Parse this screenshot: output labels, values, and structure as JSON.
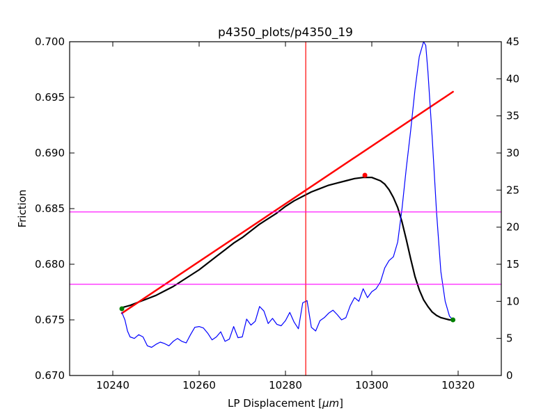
{
  "chart_data": {
    "type": "line",
    "title": "p4350_plots/p4350_19",
    "xlabel": "LP Displacement [",
    "xlabel_unit": "μm",
    "xlabel_close": "]",
    "ylabel": "Friction",
    "xlim": [
      10230,
      10330
    ],
    "ylim": [
      0.67,
      0.7
    ],
    "y2lim": [
      0,
      45
    ],
    "grid": false,
    "x_ticks": [
      {
        "value": 10240,
        "label": "10240"
      },
      {
        "value": 10260,
        "label": "10260"
      },
      {
        "value": 10280,
        "label": "10280"
      },
      {
        "value": 10300,
        "label": "10300"
      },
      {
        "value": 10320,
        "label": "10320"
      }
    ],
    "y_ticks": [
      {
        "value": 0.67,
        "label": "0.670"
      },
      {
        "value": 0.675,
        "label": "0.675"
      },
      {
        "value": 0.68,
        "label": "0.680"
      },
      {
        "value": 0.685,
        "label": "0.685"
      },
      {
        "value": 0.69,
        "label": "0.690"
      },
      {
        "value": 0.695,
        "label": "0.695"
      },
      {
        "value": 0.7,
        "label": "0.700"
      }
    ],
    "y2_ticks": [
      {
        "value": 0,
        "label": "0"
      },
      {
        "value": 5,
        "label": "5"
      },
      {
        "value": 10,
        "label": "10"
      },
      {
        "value": 15,
        "label": "15"
      },
      {
        "value": 20,
        "label": "20"
      },
      {
        "value": 25,
        "label": "25"
      },
      {
        "value": 30,
        "label": "30"
      },
      {
        "value": 35,
        "label": "35"
      },
      {
        "value": 40,
        "label": "40"
      },
      {
        "value": 45,
        "label": "45"
      }
    ],
    "series": [
      {
        "axis": "left",
        "color": "#000000",
        "x": [
          10242.1,
          10244,
          10246,
          10248,
          10250,
          10252,
          10254,
          10256,
          10258,
          10260,
          10262,
          10264,
          10266,
          10268,
          10270,
          10272,
          10274,
          10276,
          10278,
          10280,
          10282,
          10284,
          10286,
          10288,
          10290,
          10292,
          10294,
          10296,
          10298,
          10300,
          10302,
          10303,
          10304,
          10305,
          10306,
          10307,
          10308,
          10309,
          10310,
          10311,
          10312,
          10313,
          10314,
          10315,
          10316,
          10317,
          10318,
          10318.8
        ],
        "y": [
          0.6761,
          0.6763,
          0.6766,
          0.6769,
          0.6772,
          0.6776,
          0.678,
          0.6785,
          0.679,
          0.6795,
          0.6801,
          0.6807,
          0.6813,
          0.6819,
          0.6824,
          0.683,
          0.6836,
          0.6841,
          0.6846,
          0.6852,
          0.6857,
          0.6861,
          0.6865,
          0.6868,
          0.6871,
          0.6873,
          0.6875,
          0.6877,
          0.6878,
          0.6878,
          0.6875,
          0.6872,
          0.6867,
          0.686,
          0.6851,
          0.6838,
          0.6822,
          0.6805,
          0.6789,
          0.6777,
          0.6768,
          0.6762,
          0.6757,
          0.6754,
          0.6752,
          0.6751,
          0.675,
          0.675
        ]
      },
      {
        "axis": "left",
        "color": "#ff0000",
        "x": [
          10242.1,
          10318.8
        ],
        "y": [
          0.6756,
          0.6955
        ]
      },
      {
        "axis": "right",
        "color": "#0000ff",
        "x": [
          10242.1,
          10242.8,
          10243.4,
          10244,
          10245,
          10246,
          10247,
          10248,
          10249,
          10250,
          10251,
          10252,
          10253,
          10254,
          10255,
          10256,
          10257,
          10258,
          10259,
          10260,
          10261,
          10262,
          10263,
          10264,
          10265,
          10266,
          10267,
          10268,
          10269,
          10270,
          10271,
          10272,
          10273,
          10274,
          10275,
          10276,
          10277,
          10278,
          10279,
          10280,
          10281,
          10282,
          10283,
          10284,
          10285,
          10286,
          10287,
          10288,
          10289,
          10290,
          10291,
          10292,
          10293,
          10294,
          10295,
          10296,
          10297,
          10298,
          10299,
          10300,
          10301,
          10302,
          10303,
          10304,
          10305,
          10306,
          10307,
          10308,
          10309,
          10310,
          10311,
          10312,
          10312.5,
          10313,
          10314,
          10315,
          10316,
          10317,
          10318,
          10318.8
        ],
        "y": [
          8.5,
          7.5,
          6.0,
          5.2,
          5.0,
          5.5,
          5.2,
          4.0,
          3.8,
          4.2,
          4.5,
          4.3,
          4.0,
          4.6,
          5.0,
          4.6,
          4.4,
          5.5,
          6.5,
          6.6,
          6.4,
          5.7,
          4.8,
          5.2,
          5.9,
          4.6,
          4.9,
          6.6,
          5.1,
          5.2,
          7.6,
          6.8,
          7.3,
          9.3,
          8.7,
          7.0,
          7.7,
          6.9,
          6.7,
          7.4,
          8.5,
          7.2,
          6.3,
          9.8,
          10.1,
          6.5,
          6.0,
          7.4,
          7.8,
          8.4,
          8.8,
          8.2,
          7.5,
          7.8,
          9.4,
          10.5,
          10.0,
          11.7,
          10.5,
          11.3,
          11.7,
          12.6,
          14.5,
          15.5,
          16.0,
          18.0,
          22.5,
          28.0,
          33.0,
          38.5,
          43.0,
          45.0,
          44.5,
          41.0,
          32.0,
          22.0,
          14.0,
          10.0,
          8.0,
          7.5
        ]
      }
    ],
    "vertical_lines": [
      {
        "x": 10284.7,
        "color": "#ff0000"
      }
    ],
    "horizontal_lines": [
      {
        "y": 0.6847,
        "color": "#ff00ff"
      },
      {
        "y": 0.6782,
        "color": "#ff00ff"
      }
    ],
    "markers": [
      {
        "x": 10242.1,
        "y": 0.676,
        "color": "#008000"
      },
      {
        "x": 10318.8,
        "y": 0.675,
        "color": "#008000"
      },
      {
        "x": 10298.4,
        "y": 0.688,
        "color": "#ff0000"
      }
    ]
  }
}
